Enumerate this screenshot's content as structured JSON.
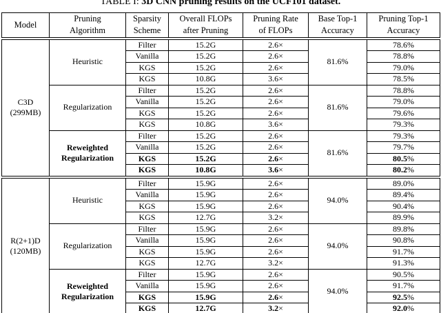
{
  "caption": {
    "label": "TABLE I: ",
    "text": "3D CNN pruning results on the UCF101 dataset."
  },
  "table": {
    "headers": [
      {
        "id": "model",
        "lines": [
          "Model"
        ]
      },
      {
        "id": "pruning-algorithm",
        "lines": [
          "Pruning",
          "Algorithm"
        ]
      },
      {
        "id": "sparsity-scheme",
        "lines": [
          "Sparsity",
          "Scheme"
        ]
      },
      {
        "id": "overall-flops",
        "lines": [
          "Overall FLOPs",
          "after Pruning"
        ]
      },
      {
        "id": "pruning-rate",
        "lines": [
          "Pruning Rate",
          "of FLOPs"
        ]
      },
      {
        "id": "base-accuracy",
        "lines": [
          "Base Top-1",
          "Accuracy"
        ]
      },
      {
        "id": "pruning-accuracy",
        "lines": [
          "Pruning Top-1",
          "Accuracy"
        ]
      }
    ],
    "groups": [
      {
        "model_lines": [
          "C3D",
          "(299MB)"
        ],
        "blocks": [
          {
            "algorithm_lines": [
              "Heuristic"
            ],
            "bold": false,
            "base_accuracy": "81.6%",
            "rows": [
              {
                "scheme": "Filter",
                "flops": "15.2G",
                "rate": "2.6×",
                "accuracy": "78.6%",
                "bold": false
              },
              {
                "scheme": "Vanilla",
                "flops": "15.2G",
                "rate": "2.6×",
                "accuracy": "78.8%",
                "bold": false
              },
              {
                "scheme": "KGS",
                "flops": "15.2G",
                "rate": "2.6×",
                "accuracy": "79.0%",
                "bold": false
              },
              {
                "scheme": "KGS",
                "flops": "10.8G",
                "rate": "3.6×",
                "accuracy": "78.5%",
                "bold": false
              }
            ]
          },
          {
            "algorithm_lines": [
              "Regularization"
            ],
            "bold": false,
            "base_accuracy": "81.6%",
            "rows": [
              {
                "scheme": "Filter",
                "flops": "15.2G",
                "rate": "2.6×",
                "accuracy": "78.8%",
                "bold": false
              },
              {
                "scheme": "Vanilla",
                "flops": "15.2G",
                "rate": "2.6×",
                "accuracy": "79.0%",
                "bold": false
              },
              {
                "scheme": "KGS",
                "flops": "15.2G",
                "rate": "2.6×",
                "accuracy": "79.6%",
                "bold": false
              },
              {
                "scheme": "KGS",
                "flops": "10.8G",
                "rate": "3.6×",
                "accuracy": "79.3%",
                "bold": false
              }
            ]
          },
          {
            "algorithm_lines": [
              "Reweighted",
              "Regularization"
            ],
            "bold": true,
            "base_accuracy": "81.6%",
            "rows": [
              {
                "scheme": "Filter",
                "flops": "15.2G",
                "rate": "2.6×",
                "accuracy": "79.3%",
                "bold": false
              },
              {
                "scheme": "Vanilla",
                "flops": "15.2G",
                "rate": "2.6×",
                "accuracy": "79.7%",
                "bold": false
              },
              {
                "scheme": "KGS",
                "flops": "15.2G",
                "rate": "2.6×",
                "accuracy": "80.5%",
                "bold": true
              },
              {
                "scheme": "KGS",
                "flops": "10.8G",
                "rate": "3.6×",
                "accuracy": "80.2%",
                "bold": true
              }
            ]
          }
        ]
      },
      {
        "model_lines": [
          "R(2+1)D",
          "(120MB)"
        ],
        "blocks": [
          {
            "algorithm_lines": [
              "Heuristic"
            ],
            "bold": false,
            "base_accuracy": "94.0%",
            "rows": [
              {
                "scheme": "Filter",
                "flops": "15.9G",
                "rate": "2.6×",
                "accuracy": "89.0%",
                "bold": false
              },
              {
                "scheme": "Vanilla",
                "flops": "15.9G",
                "rate": "2.6×",
                "accuracy": "89.4%",
                "bold": false
              },
              {
                "scheme": "KGS",
                "flops": "15.9G",
                "rate": "2.6×",
                "accuracy": "90.4%",
                "bold": false
              },
              {
                "scheme": "KGS",
                "flops": "12.7G",
                "rate": "3.2×",
                "accuracy": "89.9%",
                "bold": false
              }
            ]
          },
          {
            "algorithm_lines": [
              "Regularization"
            ],
            "bold": false,
            "base_accuracy": "94.0%",
            "rows": [
              {
                "scheme": "Filter",
                "flops": "15.9G",
                "rate": "2.6×",
                "accuracy": "89.8%",
                "bold": false
              },
              {
                "scheme": "Vanilla",
                "flops": "15.9G",
                "rate": "2.6×",
                "accuracy": "90.8%",
                "bold": false
              },
              {
                "scheme": "KGS",
                "flops": "15.9G",
                "rate": "2.6×",
                "accuracy": "91.7%",
                "bold": false
              },
              {
                "scheme": "KGS",
                "flops": "12.7G",
                "rate": "3.2×",
                "accuracy": "91.3%",
                "bold": false
              }
            ]
          },
          {
            "algorithm_lines": [
              "Reweighted",
              "Regularization"
            ],
            "bold": true,
            "base_accuracy": "94.0%",
            "rows": [
              {
                "scheme": "Filter",
                "flops": "15.9G",
                "rate": "2.6×",
                "accuracy": "90.5%",
                "bold": false
              },
              {
                "scheme": "Vanilla",
                "flops": "15.9G",
                "rate": "2.6×",
                "accuracy": "91.7%",
                "bold": false
              },
              {
                "scheme": "KGS",
                "flops": "15.9G",
                "rate": "2.6×",
                "accuracy": "92.5%",
                "bold": true
              },
              {
                "scheme": "KGS",
                "flops": "12.7G",
                "rate": "3.2×",
                "accuracy": "92.0%",
                "bold": true
              }
            ]
          }
        ]
      }
    ]
  }
}
